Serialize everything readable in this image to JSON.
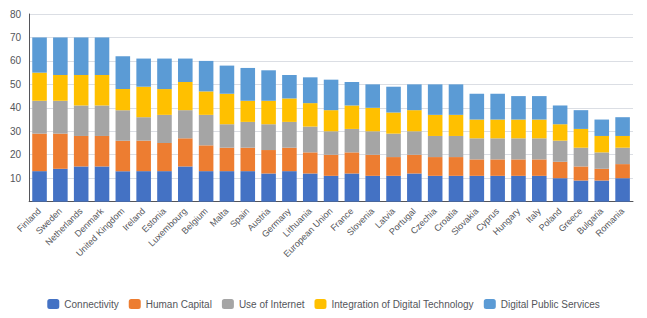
{
  "chart_data": {
    "type": "bar",
    "stacked": true,
    "grid": true,
    "legend": "bottom",
    "categories": [
      "Finland",
      "Sweden",
      "Netherlands",
      "Denmark",
      "United Kingdom",
      "Ireland",
      "Estonia",
      "Luxembourg",
      "Belgium",
      "Malta",
      "Spain",
      "Austria",
      "Germany",
      "Lithuania",
      "European Union",
      "France",
      "Slovenia",
      "Latvia",
      "Portugal",
      "Czechia",
      "Croatia",
      "Slovakia",
      "Cyprus",
      "Hungary",
      "Italy",
      "Poland",
      "Greece",
      "Bulgaria",
      "Romania"
    ],
    "series": [
      {
        "name": "Connectivity",
        "color": "#4472C4",
        "values": [
          13,
          14,
          15,
          15,
          13,
          13,
          13,
          15,
          13,
          13,
          13,
          12,
          13,
          12,
          11,
          12,
          11,
          11,
          12,
          11,
          11,
          11,
          11,
          11,
          11,
          10,
          9,
          9,
          10
        ]
      },
      {
        "name": "Human Capital",
        "color": "#ED7D31",
        "values": [
          16,
          15,
          13,
          13,
          13,
          13,
          12,
          12,
          11,
          10,
          10,
          10,
          10,
          9,
          9,
          9,
          9,
          8,
          8,
          8,
          8,
          7,
          7,
          7,
          7,
          7,
          6,
          5,
          6
        ]
      },
      {
        "name": "Use of Internet",
        "color": "#A5A5A5",
        "values": [
          14,
          14,
          13,
          13,
          13,
          10,
          12,
          12,
          13,
          10,
          11,
          11,
          11,
          11,
          10,
          10,
          10,
          10,
          10,
          9,
          9,
          9,
          9,
          9,
          9,
          9,
          8,
          7,
          7
        ]
      },
      {
        "name": "Integration of Digital Technology",
        "color": "#FFC000",
        "values": [
          12,
          11,
          13,
          13,
          9,
          13,
          11,
          12,
          10,
          13,
          9,
          10,
          10,
          10,
          9,
          10,
          10,
          9,
          9,
          9,
          9,
          8,
          8,
          8,
          8,
          7,
          8,
          7,
          5
        ]
      },
      {
        "name": "Digital Public Services",
        "color": "#5B9BD5",
        "values": [
          15,
          16,
          16,
          16,
          14,
          12,
          13,
          10,
          13,
          12,
          14,
          13,
          10,
          11,
          13,
          10,
          10,
          11,
          11,
          13,
          13,
          11,
          11,
          10,
          10,
          8,
          8,
          7,
          8
        ]
      }
    ],
    "ylim": [
      0,
      80
    ],
    "yticks": [
      10,
      20,
      30,
      40,
      50,
      60,
      70,
      80
    ]
  }
}
